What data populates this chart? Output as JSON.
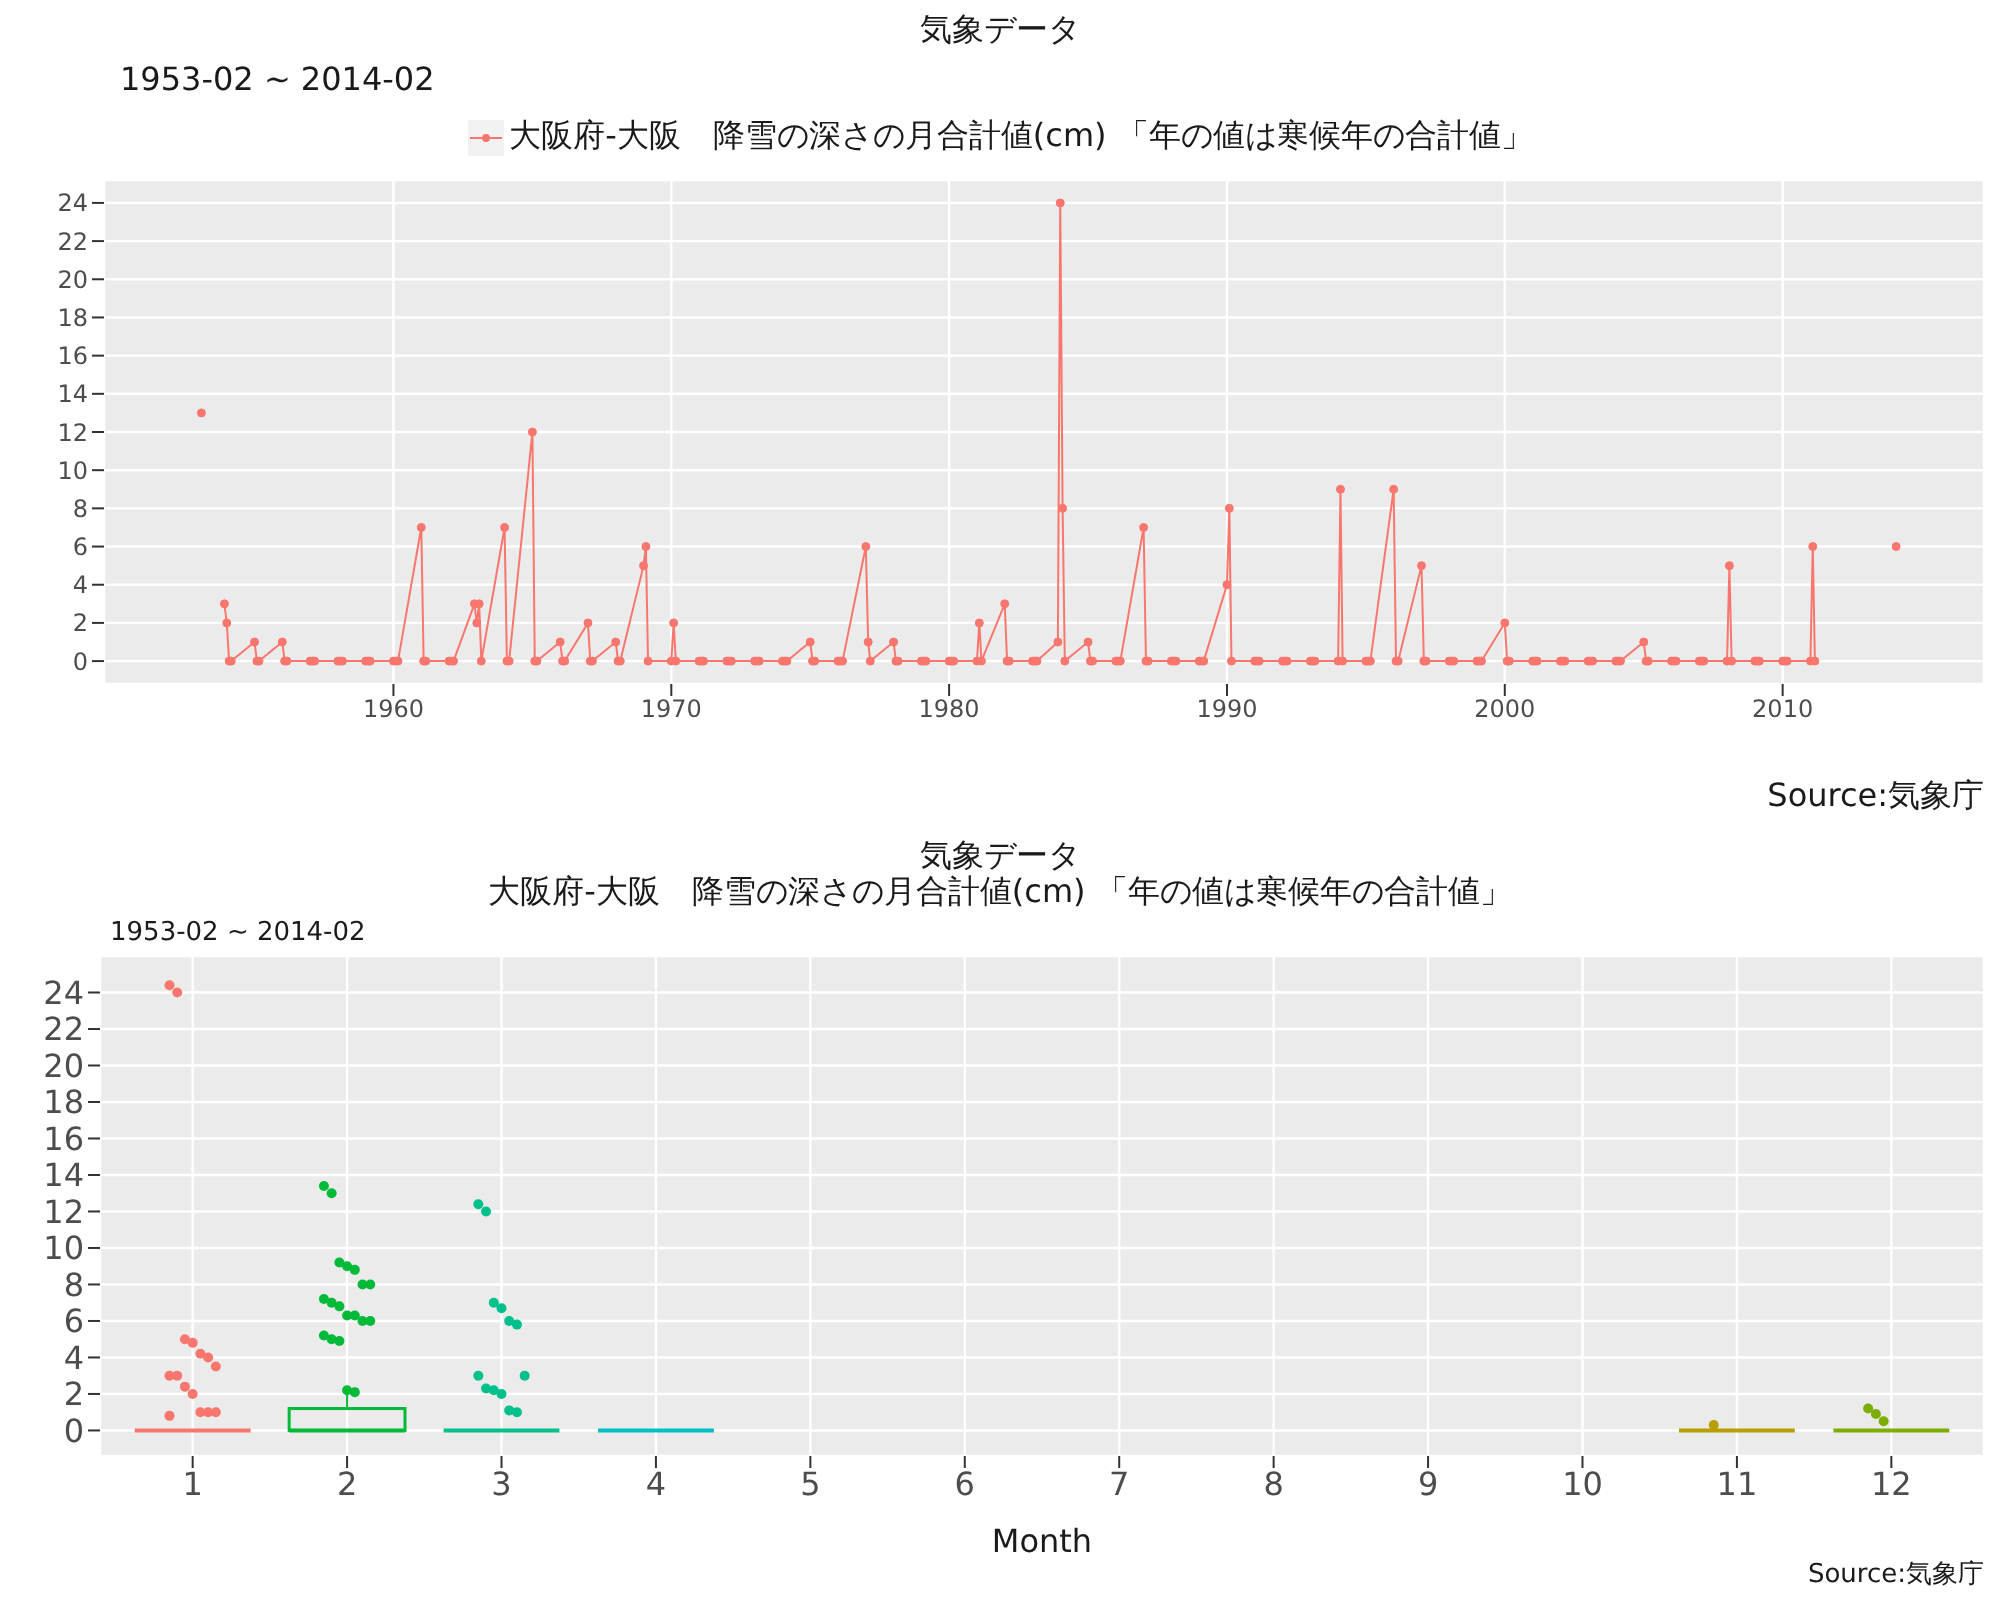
{
  "chart_data": [
    {
      "type": "line",
      "title": "気象データ",
      "subtitle": "1953-02 ~ 2014-02",
      "annotations": [
        "Source:気象庁"
      ],
      "x": [
        "1953-02",
        "1953-06",
        "1953-12",
        "1954-01",
        "1954-02",
        "1954-03",
        "1955-01",
        "1955-02",
        "1955-03",
        "1956-01",
        "1956-02",
        "1956-03",
        "1957-01",
        "1957-02",
        "1957-03",
        "1958-01",
        "1958-02",
        "1958-03",
        "1959-01",
        "1959-02",
        "1959-03",
        "1960-01",
        "1960-02",
        "1960-03",
        "1961-01",
        "1961-02",
        "1961-03",
        "1962-01",
        "1962-02",
        "1962-03",
        "1962-12",
        "1963-01",
        "1963-02",
        "1963-03",
        "1964-01",
        "1964-02",
        "1964-03",
        "1965-01",
        "1965-02",
        "1965-03",
        "1966-01",
        "1966-02",
        "1966-03",
        "1967-01",
        "1967-02",
        "1967-03",
        "1968-01",
        "1968-02",
        "1968-03",
        "1969-01",
        "1969-02",
        "1969-03",
        "1970-01",
        "1970-02",
        "1970-03",
        "1971-01",
        "1971-02",
        "1971-03",
        "1972-01",
        "1972-02",
        "1972-03",
        "1973-01",
        "1973-02",
        "1973-03",
        "1974-01",
        "1974-02",
        "1974-03",
        "1975-01",
        "1975-02",
        "1975-03",
        "1976-01",
        "1976-02",
        "1976-03",
        "1977-01",
        "1977-02",
        "1977-03",
        "1978-01",
        "1978-02",
        "1978-03",
        "1979-01",
        "1979-02",
        "1979-03",
        "1980-01",
        "1980-02",
        "1980-03",
        "1981-01",
        "1981-02",
        "1981-03",
        "1982-01",
        "1982-02",
        "1982-03",
        "1983-01",
        "1983-02",
        "1983-03",
        "1983-12",
        "1984-01",
        "1984-02",
        "1984-03",
        "1985-01",
        "1985-02",
        "1985-03",
        "1986-01",
        "1986-02",
        "1986-03",
        "1987-01",
        "1987-02",
        "1987-03",
        "1988-01",
        "1988-02",
        "1988-03",
        "1989-01",
        "1989-02",
        "1989-03",
        "1990-01",
        "1990-02",
        "1990-03",
        "1991-01",
        "1991-02",
        "1991-03",
        "1992-01",
        "1992-02",
        "1992-03",
        "1993-01",
        "1993-02",
        "1993-03",
        "1994-01",
        "1994-02",
        "1994-03",
        "1995-01",
        "1995-02",
        "1995-03",
        "1996-01",
        "1996-02",
        "1996-03",
        "1997-01",
        "1997-02",
        "1997-03",
        "1998-01",
        "1998-02",
        "1998-03",
        "1999-01",
        "1999-02",
        "1999-03",
        "2000-01",
        "2000-02",
        "2000-03",
        "2001-01",
        "2001-02",
        "2001-03",
        "2002-01",
        "2002-02",
        "2002-03",
        "2003-01",
        "2003-02",
        "2003-03",
        "2004-01",
        "2004-02",
        "2004-03",
        "2005-01",
        "2005-02",
        "2005-03",
        "2006-01",
        "2006-02",
        "2006-03",
        "2007-01",
        "2007-02",
        "2007-03",
        "2008-01",
        "2008-02",
        "2008-03",
        "2009-01",
        "2009-02",
        "2009-03",
        "2010-01",
        "2010-02",
        "2010-03",
        "2011-01",
        "2011-02",
        "2011-03",
        "2011-06",
        "2014-02"
      ],
      "series": [
        {
          "name": "大阪府-大阪　降雪の深さの月合計値(cm) 「年の値は寒候年の合計値」",
          "color": "#f8766d",
          "values": [
            13,
            null,
            3,
            2,
            0,
            0,
            1,
            0,
            0,
            1,
            0,
            0,
            0,
            0,
            0,
            0,
            0,
            0,
            0,
            0,
            0,
            0,
            0,
            0,
            7,
            0,
            0,
            0,
            0,
            0,
            3,
            2,
            3,
            0,
            7,
            0,
            0,
            12,
            0,
            0,
            1,
            0,
            0,
            2,
            0,
            0,
            1,
            0,
            0,
            5,
            6,
            0,
            0,
            2,
            0,
            0,
            0,
            0,
            0,
            0,
            0,
            0,
            0,
            0,
            0,
            0,
            0,
            1,
            0,
            0,
            0,
            0,
            0,
            6,
            1,
            0,
            1,
            0,
            0,
            0,
            0,
            0,
            0,
            0,
            0,
            0,
            2,
            0,
            3,
            0,
            0,
            0,
            0,
            0,
            1,
            24,
            8,
            0,
            1,
            0,
            0,
            0,
            0,
            0,
            7,
            0,
            0,
            0,
            0,
            0,
            0,
            0,
            0,
            4,
            8,
            0,
            0,
            0,
            0,
            0,
            0,
            0,
            0,
            0,
            0,
            0,
            9,
            0,
            0,
            0,
            0,
            9,
            0,
            0,
            5,
            0,
            0,
            0,
            0,
            0,
            0,
            0,
            0,
            2,
            0,
            0,
            0,
            0,
            0,
            0,
            0,
            0,
            0,
            0,
            0,
            0,
            0,
            0,
            1,
            0,
            0,
            0,
            0,
            0,
            0,
            0,
            0,
            0,
            5,
            0,
            0,
            0,
            0,
            0,
            0,
            0,
            0,
            6,
            0,
            null,
            6
          ]
        }
      ],
      "xlim": [
        "1949-08",
        "2017-04"
      ],
      "xticks": [
        "1960",
        "1970",
        "1980",
        "1990",
        "2000",
        "2010"
      ],
      "ylim": [
        -1.2,
        25.2
      ],
      "yticks": [
        0,
        2,
        4,
        6,
        8,
        10,
        12,
        14,
        16,
        18,
        20,
        22,
        24
      ],
      "grid": true,
      "legend": "top",
      "marker": "circle",
      "line_style": "solid"
    },
    {
      "type": "box",
      "title": "気象データ",
      "subtitle": "大阪府-大阪　降雪の深さの月合計値(cm) 「年の値は寒候年の合計値」",
      "xlabel": "Month",
      "annotations": [
        "1953-02 ~ 2014-02",
        "Source:気象庁"
      ],
      "categories": [
        "1",
        "2",
        "3",
        "4",
        "5",
        "6",
        "7",
        "8",
        "9",
        "10",
        "11",
        "12"
      ],
      "colors": [
        "#f8766d",
        "#00ba38",
        "#00c08b",
        "#00bfc4",
        null,
        null,
        null,
        null,
        null,
        null,
        "#b79f00",
        "#7cae00"
      ],
      "boxes": [
        {
          "low": 0,
          "q1": 0,
          "median": 0,
          "q3": 0,
          "high": 0,
          "outliers": [
            24.4,
            24,
            5,
            4.8,
            4.2,
            4,
            3.5,
            3,
            3,
            2.4,
            2,
            1,
            1,
            1,
            0.8
          ]
        },
        {
          "low": 0,
          "q1": 0,
          "median": 0,
          "q3": 1.2,
          "high": 2,
          "outliers": [
            13.4,
            13,
            9.2,
            9,
            8.8,
            8,
            8,
            7.2,
            7,
            6.8,
            6.3,
            6.3,
            6,
            6,
            5.2,
            5,
            4.9,
            2.2,
            2.1
          ]
        },
        {
          "low": 0,
          "q1": 0,
          "median": 0,
          "q3": 0,
          "high": 0,
          "outliers": [
            12.4,
            12,
            7,
            6.7,
            6,
            5.8,
            3,
            3,
            2.3,
            2.2,
            2,
            1.1,
            1
          ]
        },
        {
          "low": 0,
          "q1": 0,
          "median": 0,
          "q3": 0,
          "high": 0
        },
        null,
        null,
        null,
        null,
        null,
        null,
        {
          "low": 0,
          "q1": 0,
          "median": 0,
          "q3": 0,
          "high": 0,
          "outliers": [
            0.3
          ]
        },
        {
          "low": 0,
          "q1": 0,
          "median": 0,
          "q3": 0,
          "high": 0,
          "outliers": [
            1.2,
            0.9,
            0.5
          ]
        }
      ],
      "ylim": [
        -1.4,
        26
      ],
      "yticks": [
        0,
        2,
        4,
        6,
        8,
        10,
        12,
        14,
        16,
        18,
        20,
        22,
        24
      ],
      "grid": true
    }
  ]
}
